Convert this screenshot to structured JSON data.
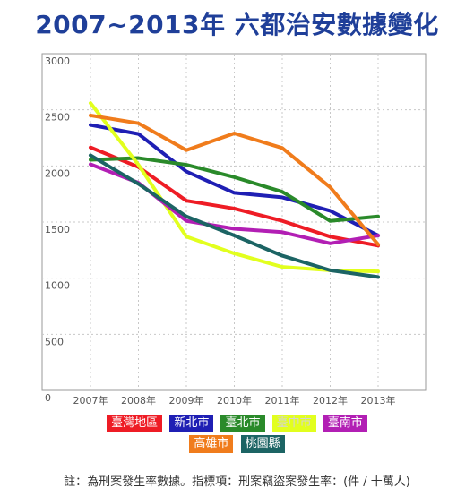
{
  "title": "2007~2013年 六都治安數據變化",
  "note": "註：為刑案發生率數據。指標項：刑案竊盜案發生率：(件 / 十萬人)",
  "chart_data": {
    "type": "line",
    "title": "2007~2013年 六都治安數據變化",
    "xlabel": "",
    "ylabel": "",
    "x": [
      "2007年",
      "2008年",
      "2009年",
      "2010年",
      "2011年",
      "2012年",
      "2013年"
    ],
    "yticks": [
      "0",
      "500",
      "1000",
      "1500",
      "2000",
      "2500",
      "3000"
    ],
    "ylim": [
      0,
      3000
    ],
    "grid": true,
    "legend_position": "bottom",
    "series": [
      {
        "name": "臺灣地區",
        "color": "#ee1c25",
        "values": [
          2165,
          1990,
          1690,
          1620,
          1510,
          1370,
          1290
        ]
      },
      {
        "name": "新北市",
        "color": "#1f1fb4",
        "values": [
          2365,
          2285,
          1950,
          1760,
          1720,
          1600,
          1380
        ]
      },
      {
        "name": "臺北市",
        "color": "#2a8a2a",
        "values": [
          2055,
          2070,
          2010,
          1900,
          1770,
          1510,
          1550
        ]
      },
      {
        "name": "臺中市",
        "color": "#e2ff1e",
        "values": [
          2560,
          2010,
          1370,
          1220,
          1100,
          1070,
          1060
        ]
      },
      {
        "name": "臺南市",
        "color": "#b21fb4",
        "values": [
          2015,
          1850,
          1510,
          1440,
          1410,
          1310,
          1380
        ]
      },
      {
        "name": "高雄市",
        "color": "#f07c1c",
        "values": [
          2450,
          2380,
          2140,
          2290,
          2160,
          1810,
          1300
        ]
      },
      {
        "name": "桃園縣",
        "color": "#1c6464",
        "values": [
          2095,
          1840,
          1550,
          1380,
          1200,
          1070,
          1010
        ]
      }
    ]
  }
}
